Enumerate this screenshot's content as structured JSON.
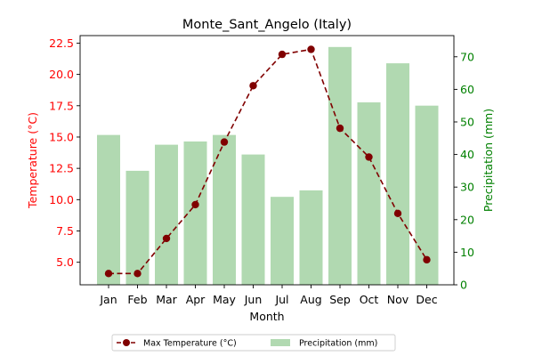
{
  "chart_data": {
    "type": "bar",
    "title": "Monte_Sant_Angelo (Italy)",
    "xlabel": "Month",
    "ylabel_left": "Temperature (°C)",
    "ylabel_right": "Precipitation (mm)",
    "categories": [
      "Jan",
      "Feb",
      "Mar",
      "Apr",
      "May",
      "Jun",
      "Jul",
      "Aug",
      "Sep",
      "Oct",
      "Nov",
      "Dec"
    ],
    "series": [
      {
        "name": "Max Temperature (°C)",
        "kind": "line",
        "axis": "left",
        "color": "#800000",
        "values": [
          4.1,
          4.1,
          6.9,
          9.6,
          14.6,
          19.1,
          21.6,
          22.0,
          15.7,
          13.4,
          8.9,
          5.2
        ]
      },
      {
        "name": "Precipitation (mm)",
        "kind": "bar",
        "axis": "right",
        "color": "#b1d9b1",
        "values": [
          46,
          35,
          43,
          44,
          46,
          40,
          27,
          29,
          73,
          56,
          68,
          55
        ]
      }
    ],
    "ylim_left": [
      3.2,
      23.1
    ],
    "ylim_right": [
      0,
      76.5
    ],
    "yticks_left": [
      "5.0",
      "7.5",
      "10.0",
      "12.5",
      "15.0",
      "17.5",
      "20.0",
      "22.5"
    ],
    "yticks_right": [
      "0",
      "10",
      "20",
      "30",
      "40",
      "50",
      "60",
      "70"
    ],
    "left_axis_color": "#ff0000",
    "right_axis_color": "#008000",
    "legend_position": "bottom-center",
    "grid": false
  }
}
